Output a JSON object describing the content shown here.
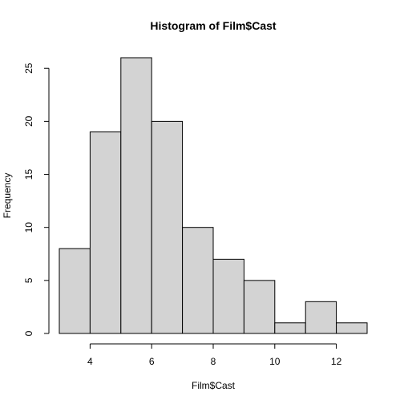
{
  "chart_data": {
    "type": "bar",
    "title": "Histogram of Film$Cast",
    "xlabel": "Film$Cast",
    "ylabel": "Frequency",
    "bins": [
      {
        "from": 3,
        "to": 4,
        "count": 8
      },
      {
        "from": 4,
        "to": 5,
        "count": 19
      },
      {
        "from": 5,
        "to": 6,
        "count": 26
      },
      {
        "from": 6,
        "to": 7,
        "count": 20
      },
      {
        "from": 7,
        "to": 8,
        "count": 10
      },
      {
        "from": 8,
        "to": 9,
        "count": 7
      },
      {
        "from": 9,
        "to": 10,
        "count": 5
      },
      {
        "from": 10,
        "to": 11,
        "count": 1
      },
      {
        "from": 11,
        "to": 12,
        "count": 3
      },
      {
        "from": 12,
        "to": 13,
        "count": 1
      }
    ],
    "xlim": [
      3,
      13
    ],
    "ylim": [
      0,
      26
    ],
    "x_ticks": [
      4,
      6,
      8,
      10,
      12
    ],
    "y_ticks": [
      0,
      5,
      10,
      15,
      20,
      25
    ],
    "bar_color": "#d3d3d3",
    "border_color": "#000000",
    "grid": false,
    "legend": "none"
  }
}
